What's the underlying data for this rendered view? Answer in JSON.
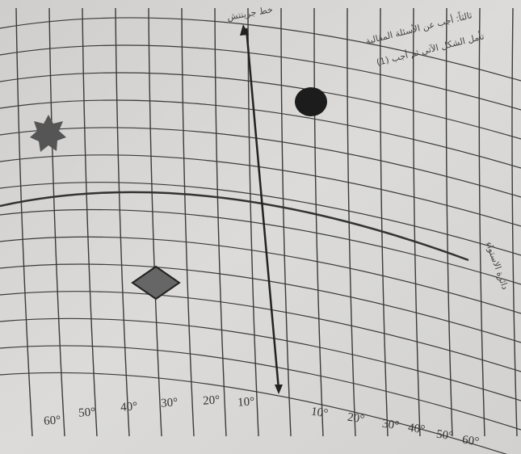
{
  "header": {
    "title": "ثالثاً: أجب عن الأسئلة المقالية",
    "question": "(1) تأمل الشكل الآتي ثم أجب"
  },
  "map": {
    "greenwich_label": "خط جرينتش",
    "equator_label": "دائرة الاستواء",
    "longitude_labels": [
      "60°",
      "50°",
      "40°",
      "30°",
      "20°",
      "10°",
      "10°",
      "20°",
      "30°",
      "40°",
      "50°",
      "60°"
    ]
  }
}
